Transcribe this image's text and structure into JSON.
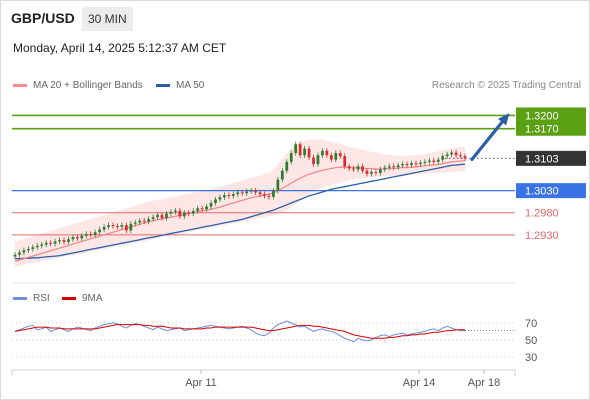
{
  "header": {
    "symbol": "GBP/USD",
    "timeframe": "30 MIN",
    "datetime": "Monday, April 14, 2025 5:12:37 AM CET"
  },
  "legend": {
    "bb_label": "MA 20 + Bollinger Bands",
    "ma50_label": "MA 50",
    "credit": "Research © 2025 Trading Central",
    "rsi_label": "RSI",
    "rsi_ma_label": "9MA"
  },
  "colors": {
    "candle_up": "#2e7d32",
    "candle_down": "#d32f2f",
    "ma20": "#f28b8b",
    "band_fill": "#fde2e2",
    "ma50": "#2b5ea7",
    "target": "#5aa012",
    "pivot": "#3b73e6",
    "support": "#e46a6a",
    "last_price": "#333333",
    "rsi": "#6f8fd8",
    "rsi_ma": "#d40000",
    "arrow": "#2b5ea7"
  },
  "chart_data": [
    {
      "type": "candlestick",
      "title": "",
      "x_ticks": [
        "Apr 11",
        "Apr 14",
        "Apr 18"
      ],
      "y_range": [
        1.2855,
        1.3235
      ],
      "levels": [
        {
          "name": "target-2",
          "value": 1.32,
          "label": "1.3200",
          "kind": "target"
        },
        {
          "name": "target-1",
          "value": 1.317,
          "label": "1.3170",
          "kind": "target"
        },
        {
          "name": "last-price",
          "value": 1.3103,
          "label": "1.3103",
          "kind": "last"
        },
        {
          "name": "pivot",
          "value": 1.303,
          "label": "1.3030",
          "kind": "pivot"
        },
        {
          "name": "support-1",
          "value": 1.298,
          "label": "1.2980",
          "kind": "support"
        },
        {
          "name": "support-2",
          "value": 1.293,
          "label": "1.2930",
          "kind": "support"
        }
      ],
      "close": [
        1.2885,
        1.289,
        1.2895,
        1.2898,
        1.2902,
        1.2905,
        1.2908,
        1.2912,
        1.291,
        1.2915,
        1.2918,
        1.2914,
        1.292,
        1.2925,
        1.2922,
        1.2928,
        1.2932,
        1.293,
        1.2936,
        1.2942,
        1.2948,
        1.2952,
        1.295,
        1.2948,
        1.2952,
        1.294,
        1.2955,
        1.2958,
        1.2962,
        1.296,
        1.2966,
        1.297,
        1.2975,
        1.2968,
        1.2978,
        1.2982,
        1.2985,
        1.2972,
        1.298,
        1.2978,
        1.2984,
        1.299,
        1.2988,
        1.2994,
        1.3002,
        1.301,
        1.3015,
        1.302,
        1.3018,
        1.3022,
        1.3026,
        1.3024,
        1.3028,
        1.303,
        1.3026,
        1.3022,
        1.3018,
        1.3016,
        1.303,
        1.3055,
        1.3075,
        1.3095,
        1.3115,
        1.3135,
        1.311,
        1.3125,
        1.3105,
        1.309,
        1.311,
        1.312,
        1.311,
        1.31,
        1.3115,
        1.3108,
        1.3085,
        1.308,
        1.3078,
        1.3085,
        1.3075,
        1.3068,
        1.3072,
        1.307,
        1.3078,
        1.3082,
        1.3085,
        1.3083,
        1.3087,
        1.309,
        1.3088,
        1.3092,
        1.309,
        1.3093,
        1.3095,
        1.3098,
        1.3095,
        1.31,
        1.3108,
        1.3112,
        1.3116,
        1.311,
        1.3108,
        1.3103
      ],
      "ma20": [
        1.287,
        1.2873,
        1.2876,
        1.2879,
        1.2882,
        1.2885,
        1.2888,
        1.2891,
        1.2894,
        1.2897,
        1.29,
        1.2903,
        1.2906,
        1.2909,
        1.2912,
        1.2915,
        1.2918,
        1.2921,
        1.2924,
        1.2927,
        1.293,
        1.2933,
        1.2936,
        1.2939,
        1.2942,
        1.2945,
        1.2948,
        1.2951,
        1.2954,
        1.2957,
        1.296,
        1.2962,
        1.2964,
        1.2966,
        1.2968,
        1.297,
        1.2972,
        1.2974,
        1.2976,
        1.2978,
        1.298,
        1.2982,
        1.2984,
        1.2986,
        1.2988,
        1.299,
        1.2993,
        1.2996,
        1.2999,
        1.3002,
        1.3005,
        1.3008,
        1.3011,
        1.3014,
        1.3016,
        1.3018,
        1.302,
        1.3022,
        1.3025,
        1.303,
        1.3035,
        1.3041,
        1.3047,
        1.3053,
        1.3058,
        1.3063,
        1.3067,
        1.307,
        1.3073,
        1.3076,
        1.3078,
        1.308,
        1.3082,
        1.3083,
        1.3083,
        1.3083,
        1.3082,
        1.3082,
        1.3081,
        1.308,
        1.308,
        1.3079,
        1.3079,
        1.3079,
        1.308,
        1.308,
        1.3081,
        1.3082,
        1.3082,
        1.3083,
        1.3084,
        1.3085,
        1.3086,
        1.3087,
        1.3088,
        1.3089,
        1.3091,
        1.3093,
        1.3095,
        1.3096,
        1.3097,
        1.3098
      ],
      "bb_upper": [
        1.2915,
        1.2918,
        1.2921,
        1.2924,
        1.2927,
        1.293,
        1.2933,
        1.2936,
        1.2939,
        1.2942,
        1.2945,
        1.2948,
        1.2951,
        1.2954,
        1.2957,
        1.296,
        1.2963,
        1.2966,
        1.2969,
        1.2972,
        1.2975,
        1.2978,
        1.2981,
        1.2984,
        1.2987,
        1.299,
        1.2993,
        1.2996,
        1.2999,
        1.3002,
        1.3005,
        1.3007,
        1.3009,
        1.3011,
        1.3013,
        1.3015,
        1.3017,
        1.3019,
        1.3021,
        1.3023,
        1.3025,
        1.3027,
        1.3029,
        1.3031,
        1.3033,
        1.3035,
        1.3038,
        1.3041,
        1.3044,
        1.3047,
        1.305,
        1.3053,
        1.3056,
        1.3059,
        1.3062,
        1.3065,
        1.3068,
        1.3071,
        1.3078,
        1.309,
        1.3102,
        1.3114,
        1.3125,
        1.3135,
        1.314,
        1.3143,
        1.3145,
        1.3146,
        1.3146,
        1.3145,
        1.3143,
        1.3141,
        1.3139,
        1.3136,
        1.3133,
        1.313,
        1.3127,
        1.3125,
        1.3122,
        1.312,
        1.3118,
        1.3116,
        1.3114,
        1.3112,
        1.3111,
        1.311,
        1.3109,
        1.3109,
        1.3109,
        1.311,
        1.3111,
        1.3112,
        1.3113,
        1.3115,
        1.3117,
        1.3119,
        1.3121,
        1.3124,
        1.3126,
        1.3128,
        1.3129,
        1.313
      ],
      "bb_lower": [
        1.2858,
        1.286,
        1.2862,
        1.2864,
        1.2866,
        1.2868,
        1.287,
        1.2872,
        1.2874,
        1.2876,
        1.2878,
        1.288,
        1.2882,
        1.2884,
        1.2886,
        1.2888,
        1.289,
        1.2892,
        1.2894,
        1.2896,
        1.2898,
        1.29,
        1.2902,
        1.2904,
        1.2906,
        1.2908,
        1.291,
        1.2912,
        1.2914,
        1.2916,
        1.2918,
        1.292,
        1.2922,
        1.2924,
        1.2926,
        1.2928,
        1.293,
        1.2932,
        1.2934,
        1.2936,
        1.2938,
        1.294,
        1.2942,
        1.2944,
        1.2946,
        1.2948,
        1.295,
        1.2952,
        1.2954,
        1.2956,
        1.2958,
        1.296,
        1.2962,
        1.2964,
        1.2966,
        1.2968,
        1.297,
        1.2972,
        1.2974,
        1.2976,
        1.298,
        1.2985,
        1.2992,
        1.3,
        1.3008,
        1.3015,
        1.3021,
        1.3027,
        1.3032,
        1.3036,
        1.304,
        1.3043,
        1.3046,
        1.3049,
        1.3051,
        1.3053,
        1.3055,
        1.3057,
        1.3058,
        1.3059,
        1.306,
        1.3061,
        1.3062,
        1.3062,
        1.3063,
        1.3064,
        1.3064,
        1.3065,
        1.3066,
        1.3066,
        1.3067,
        1.3068,
        1.3068,
        1.3069,
        1.307,
        1.307,
        1.3071,
        1.3072,
        1.3072,
        1.3073,
        1.3074,
        1.3074
      ],
      "ma50": [
        1.2876,
        1.2876,
        1.2877,
        1.2877,
        1.2878,
        1.2878,
        1.2879,
        1.288,
        1.2881,
        1.2882,
        1.2883,
        1.2885,
        1.2887,
        1.2889,
        1.2891,
        1.2893,
        1.2895,
        1.2897,
        1.2899,
        1.2901,
        1.2903,
        1.2905,
        1.2907,
        1.2909,
        1.2911,
        1.2913,
        1.2915,
        1.2917,
        1.2919,
        1.2921,
        1.2923,
        1.2925,
        1.2927,
        1.2929,
        1.2931,
        1.2933,
        1.2935,
        1.2937,
        1.2939,
        1.2941,
        1.2943,
        1.2945,
        1.2947,
        1.2949,
        1.2951,
        1.2953,
        1.2955,
        1.2957,
        1.2959,
        1.2961,
        1.2963,
        1.2965,
        1.2968,
        1.2971,
        1.2974,
        1.2977,
        1.298,
        1.2983,
        1.2986,
        1.299,
        1.2994,
        1.2998,
        1.3002,
        1.3006,
        1.301,
        1.3014,
        1.3018,
        1.3021,
        1.3024,
        1.3027,
        1.303,
        1.3033,
        1.3035,
        1.3037,
        1.3039,
        1.3041,
        1.3043,
        1.3045,
        1.3047,
        1.3049,
        1.3051,
        1.3053,
        1.3055,
        1.3057,
        1.3059,
        1.3061,
        1.3063,
        1.3065,
        1.3067,
        1.3069,
        1.3071,
        1.3073,
        1.3075,
        1.3077,
        1.3079,
        1.3081,
        1.3083,
        1.3085,
        1.3087,
        1.3088,
        1.3089,
        1.309
      ]
    },
    {
      "type": "line",
      "title": "",
      "y_ticks": [
        70,
        50,
        30
      ],
      "y_range": [
        22,
        78
      ],
      "series": [
        {
          "name": "RSI",
          "values": [
            60,
            62,
            64,
            66,
            67,
            62,
            63,
            65,
            60,
            62,
            64,
            62,
            60,
            63,
            65,
            64,
            62,
            61,
            64,
            66,
            68,
            69,
            70,
            69,
            66,
            64,
            67,
            69,
            68,
            66,
            64,
            62,
            65,
            63,
            61,
            62,
            63,
            64,
            61,
            62,
            63,
            64,
            65,
            66,
            67,
            66,
            65,
            64,
            63,
            64,
            65,
            66,
            64,
            62,
            58,
            56,
            55,
            58,
            64,
            68,
            70,
            72,
            70,
            68,
            65,
            66,
            63,
            60,
            62,
            63,
            61,
            60,
            58,
            55,
            52,
            50,
            48,
            52,
            50,
            49,
            50,
            53,
            55,
            56,
            54,
            56,
            57,
            58,
            56,
            57,
            58,
            59,
            60,
            62,
            63,
            61,
            64,
            66,
            64,
            62,
            61,
            61
          ]
        },
        {
          "name": "9MA",
          "values": [
            60,
            61,
            62,
            63,
            64,
            65,
            65,
            65,
            64,
            64,
            64,
            63,
            63,
            63,
            63,
            63,
            63,
            63,
            63,
            64,
            65,
            66,
            67,
            68,
            68,
            68,
            68,
            68,
            68,
            67,
            67,
            66,
            66,
            66,
            65,
            64,
            64,
            64,
            63,
            63,
            63,
            63,
            63,
            64,
            64,
            65,
            65,
            65,
            65,
            65,
            65,
            65,
            65,
            65,
            64,
            63,
            62,
            61,
            61,
            62,
            63,
            64,
            65,
            66,
            67,
            67,
            67,
            66,
            66,
            65,
            64,
            63,
            62,
            61,
            60,
            58,
            56,
            55,
            54,
            53,
            52,
            52,
            52,
            52,
            53,
            53,
            54,
            55,
            55,
            56,
            56,
            57,
            57,
            58,
            59,
            59,
            60,
            61,
            61,
            62,
            62,
            62
          ]
        }
      ]
    }
  ]
}
